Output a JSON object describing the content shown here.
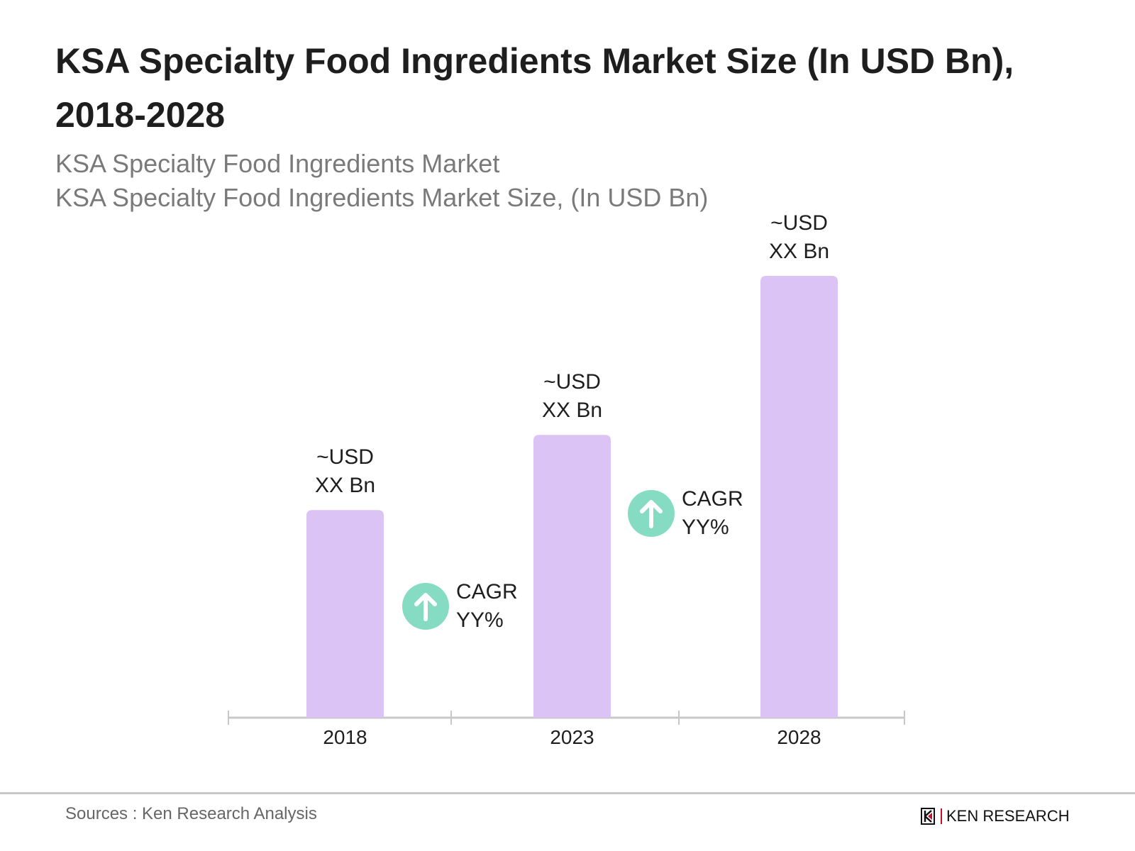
{
  "chart_data": {
    "type": "bar",
    "title": "KSA Specialty Food Ingredients Market Size (In USD Bn), 2018-2028",
    "subtitle": [
      "KSA Specialty Food Ingredients Market",
      "KSA Specialty Food Ingredients Market Size, (In USD Bn)"
    ],
    "categories": [
      "2018",
      "2023",
      "2028"
    ],
    "values": [
      47,
      64,
      100
    ],
    "data_labels": [
      [
        "~USD",
        "XX Bn"
      ],
      [
        "~USD",
        "XX Bn"
      ],
      [
        "~USD",
        "XX Bn"
      ]
    ],
    "annotations": [
      {
        "between": [
          "2018",
          "2023"
        ],
        "label": "CAGR",
        "value": "YY%",
        "icon": "arrow-up-circle-icon"
      },
      {
        "between": [
          "2023",
          "2028"
        ],
        "label": "CAGR",
        "value": "YY%",
        "icon": "arrow-up-circle-icon"
      }
    ],
    "xlabel": "",
    "ylabel": "",
    "grid": false,
    "colors": {
      "bar": "#dcc3f5",
      "cagr_circle": "#86dcc2",
      "axis": "#c8c8c8"
    }
  },
  "footer": {
    "source": "Sources : Ken Research Analysis",
    "logo_text": "KEN RESEARCH"
  }
}
